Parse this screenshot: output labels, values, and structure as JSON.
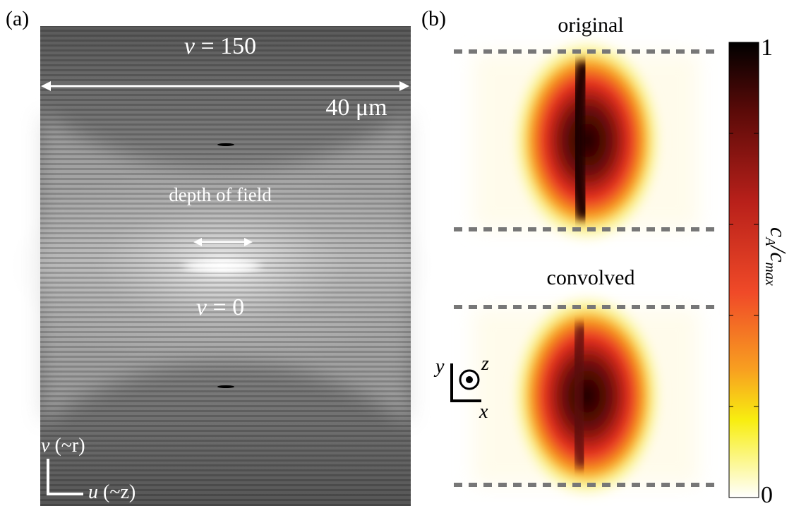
{
  "panel_a": {
    "label": "(a)",
    "top_label": {
      "symbol": "v",
      "text": "= 150"
    },
    "scale_label": "40 μm",
    "dof_label": "depth of field",
    "center_label": {
      "symbol": "v",
      "text": "= 0"
    },
    "axis_v": {
      "symbol": "v",
      "text": "(~r)"
    },
    "axis_u": {
      "symbol": "u",
      "text": "(~z)"
    }
  },
  "panel_b": {
    "label": "(b)",
    "top_title": "original",
    "bottom_title": "convolved",
    "colorbar": {
      "max_label": "1",
      "min_label": "0",
      "title_parts": [
        "c",
        "A",
        "/",
        "c",
        "max"
      ]
    },
    "axes": {
      "y": "y",
      "z": "z",
      "x": "x"
    }
  }
}
